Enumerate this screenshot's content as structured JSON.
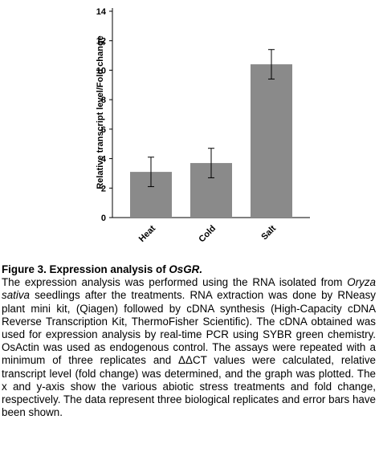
{
  "chart_data": {
    "type": "bar",
    "categories": [
      "Heat",
      "Cold",
      "Salt"
    ],
    "values": [
      3.1,
      3.7,
      10.4
    ],
    "errors": [
      1.0,
      1.0,
      1.0
    ],
    "ylabel": "Relative transcript level/Fold change",
    "xlabel": "",
    "ylim": [
      0,
      14
    ],
    "yticks": [
      0,
      2,
      4,
      6,
      8,
      10,
      12,
      14
    ],
    "bar_color": "#8a8a8a",
    "grid": false
  },
  "caption": {
    "title_prefix": "Figure 3. Expression analysis of ",
    "title_gene": "OsGR.",
    "body_1": "The expression analysis was performed using the RNA isolated from ",
    "body_species": "Oryza sativa",
    "body_2": " seedlings after the treatments. RNA extraction was done by RNeasy plant mini kit, (Qiagen) followed by cDNA synthesis (High-Capacity cDNA Reverse Transcription Kit, ThermoFisher Scientific). The cDNA obtained was used for expression analysis by real-time PCR using SYBR green chemistry. OsActin was used as endogenous control. The assays were repeated with a minimum of three replicates and ΔΔCT values were calculated, relative transcript level (fold change) was determined, and the graph was plotted. The x and y-axis show the various abiotic stress treatments and fold change, respectively. The data represent three biological replicates and error bars have been shown."
  }
}
